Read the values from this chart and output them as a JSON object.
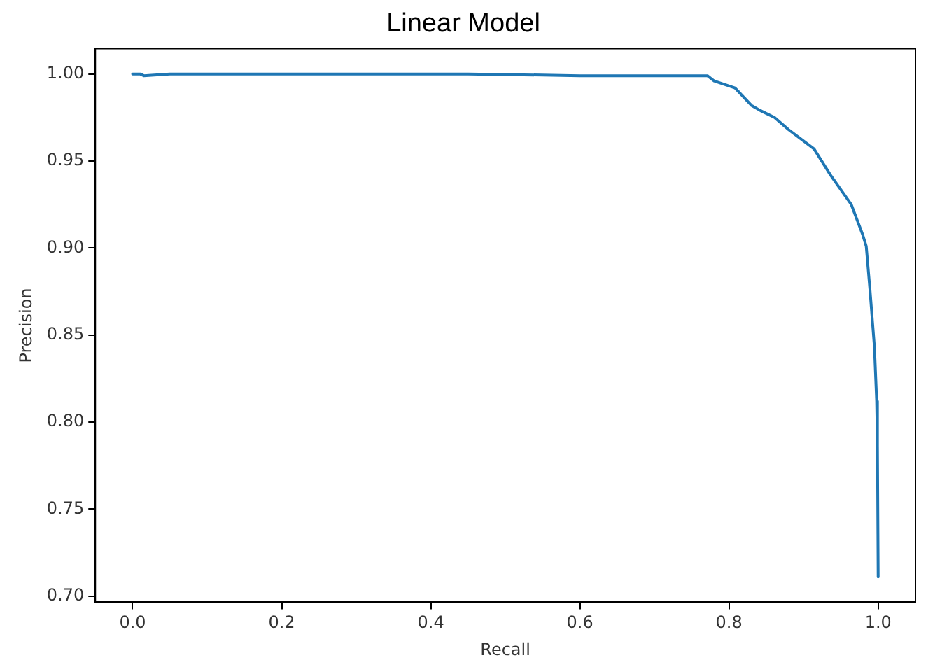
{
  "chart_data": {
    "type": "line",
    "title": "Linear Model",
    "xlabel": "Recall",
    "ylabel": "Precision",
    "x": [
      0,
      0.01,
      0.015,
      0.05,
      0.2,
      0.45,
      0.6,
      0.714,
      0.771,
      0.78,
      0.808,
      0.83,
      0.842,
      0.861,
      0.88,
      0.914,
      0.936,
      0.964,
      0.979,
      0.984,
      0.989,
      0.995,
      0.998,
      0.999,
      1.0
    ],
    "series": [
      {
        "color": "#1f77b4",
        "values": [
          1.0,
          1.0,
          0.999,
          1.0,
          1.0,
          1.0,
          0.999,
          0.999,
          0.999,
          0.996,
          0.992,
          0.982,
          0.979,
          0.975,
          0.968,
          0.957,
          0.942,
          0.925,
          0.908,
          0.901,
          0.876,
          0.843,
          0.812,
          0.787,
          0.711
        ]
      }
    ],
    "xlim": [
      -0.05,
      1.05
    ],
    "ylim": [
      0.6965,
      1.0145
    ],
    "xticks": [
      {
        "value": 0,
        "label": "0.0"
      },
      {
        "value": 0.2,
        "label": "0.2"
      },
      {
        "value": 0.4,
        "label": "0.4"
      },
      {
        "value": 0.6,
        "label": "0.6"
      },
      {
        "value": 0.8,
        "label": "0.8"
      },
      {
        "value": 1,
        "label": "1.0"
      }
    ],
    "yticks": [
      {
        "value": 0.7,
        "label": "0.70"
      },
      {
        "value": 0.75,
        "label": "0.75"
      },
      {
        "value": 0.8,
        "label": "0.80"
      },
      {
        "value": 0.85,
        "label": "0.85"
      },
      {
        "value": 0.9,
        "label": "0.90"
      },
      {
        "value": 0.95,
        "label": "0.95"
      },
      {
        "value": 1,
        "label": "1.00"
      }
    ],
    "grid": false,
    "legend": false,
    "marker": "none",
    "line_style": "solid"
  }
}
